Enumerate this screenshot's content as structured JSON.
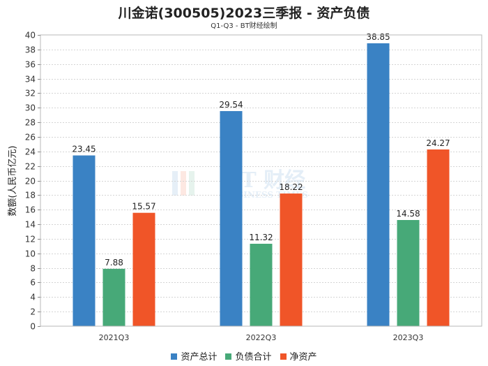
{
  "chart_data": {
    "type": "bar",
    "title": "川金诺(300505)2023三季报 - 资产负债",
    "subtitle": "Q1-Q3 - BT财经绘制",
    "ylabel": "数额(人民币亿元)",
    "xlabel": "",
    "ylim": [
      0,
      40
    ],
    "ytick_step": 2,
    "grid": true,
    "legend_position": "bottom",
    "categories": [
      "2021Q3",
      "2022Q3",
      "2023Q3"
    ],
    "series": [
      {
        "name": "资产总计",
        "color": "#3a82c4",
        "values": [
          23.45,
          29.54,
          38.85
        ]
      },
      {
        "name": "负债合计",
        "color": "#47a978",
        "values": [
          7.88,
          11.32,
          14.58
        ]
      },
      {
        "name": "净资产",
        "color": "#f05528",
        "values": [
          15.57,
          18.22,
          24.27
        ]
      }
    ],
    "watermark": {
      "main": "BT 财经",
      "sub": "BUSINESS TIMES"
    }
  }
}
